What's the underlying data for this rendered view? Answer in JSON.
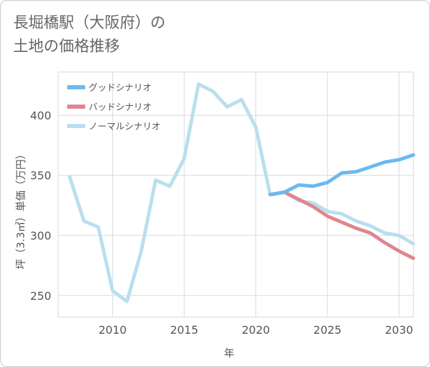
{
  "title": {
    "line1": "長堀橋駅（大阪府）の",
    "line2": "土地の価格推移"
  },
  "chart_data": {
    "type": "line",
    "xlabel": "年",
    "ylabel": "坪（3.3㎡）単価（万円）",
    "xlim": [
      2006.2,
      2031
    ],
    "ylim": [
      232,
      436
    ],
    "xticks": [
      2010,
      2015,
      2020,
      2025,
      2030
    ],
    "yticks": [
      250,
      300,
      350,
      400
    ],
    "grid": true,
    "legend_position": "top-left",
    "series": [
      {
        "name": "グッドシナリオ",
        "color": "#6cb9ee",
        "x": [
          2021,
          2022,
          2023,
          2024,
          2025,
          2026,
          2027,
          2028,
          2029,
          2030,
          2031
        ],
        "values": [
          334,
          336,
          342,
          341,
          344,
          352,
          353,
          357,
          361,
          363,
          367
        ]
      },
      {
        "name": "バッドシナリオ",
        "color": "#e0858f",
        "x": [
          2021,
          2022,
          2023,
          2024,
          2025,
          2026,
          2027,
          2028,
          2029,
          2030,
          2031
        ],
        "values": [
          334,
          336,
          330,
          324,
          316,
          311,
          306,
          302,
          294,
          287,
          281
        ]
      },
      {
        "name": "ノーマルシナリオ",
        "color": "#b9dfee",
        "x": [
          2007,
          2008,
          2009,
          2010,
          2011,
          2012,
          2013,
          2014,
          2015,
          2016,
          2017,
          2018,
          2019,
          2020,
          2021,
          2022,
          2023,
          2024,
          2025,
          2026,
          2027,
          2028,
          2029,
          2030,
          2031
        ],
        "values": [
          349,
          312,
          307,
          254,
          245,
          287,
          346,
          341,
          364,
          426,
          420,
          407,
          413,
          390,
          334,
          336,
          329,
          327,
          320,
          318,
          312,
          308,
          302,
          300,
          293
        ]
      }
    ]
  }
}
